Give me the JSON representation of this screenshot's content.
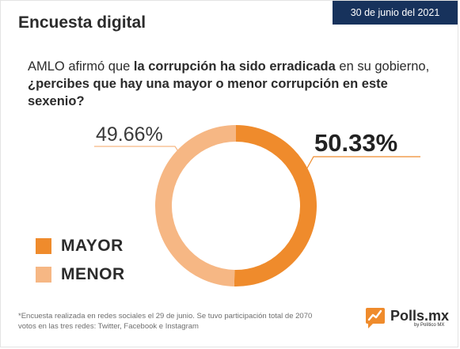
{
  "header": {
    "title": "Encuesta digital",
    "date": "30 de junio del 2021"
  },
  "question": {
    "part1": "AMLO afirmó que ",
    "part2": "la corrupción ha sido erradicada",
    "part3": " en su gobierno, ",
    "part4": "¿percibes que hay una mayor o menor corrupción en este sexenio?"
  },
  "chart_data": {
    "type": "pie",
    "categories": [
      "MAYOR",
      "MENOR"
    ],
    "values": [
      50.33,
      49.66
    ],
    "data_labels": [
      "50.33%",
      "49.66%"
    ],
    "colors": [
      "#ef8b2c",
      "#f6b784"
    ],
    "donut": true,
    "legend_position": "bottom-left"
  },
  "footnote": "*Encuesta realizada en redes sociales el 29 de junio. Se tuvo participación total de 2070 votos en las tres redes: Twitter, Facebook e Instagram",
  "logo": {
    "name": "Polls.mx",
    "sub": "by Político MX",
    "icon": "chart-speech-bubble-icon"
  }
}
